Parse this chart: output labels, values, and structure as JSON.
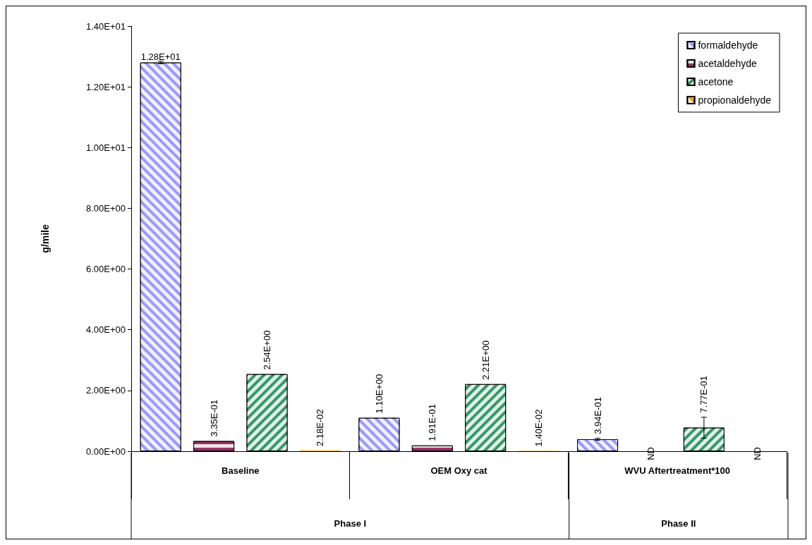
{
  "chart_data": {
    "type": "bar",
    "ylabel": "g/mile",
    "categories": [
      "Baseline",
      "OEM Oxy cat",
      "WVU Aftertreatment*100"
    ],
    "series": [
      {
        "name": "formaldehyde",
        "color": "#9999ff",
        "values": [
          12.8,
          1.1,
          0.394
        ],
        "errors": [
          0.04,
          null,
          0.03
        ],
        "value_labels": [
          "1.28E+01",
          "1.10E+00",
          "3.94E-01"
        ]
      },
      {
        "name": "acetaldehyde",
        "color": "#993366",
        "values": [
          0.335,
          0.191,
          null
        ],
        "value_labels": [
          "3.35E-01",
          "1.91E-01",
          "ND"
        ]
      },
      {
        "name": "acetone",
        "color": "#339966",
        "values": [
          2.54,
          2.21,
          0.777
        ],
        "errors": [
          null,
          null,
          [
            0.43,
            1.12
          ]
        ],
        "value_labels": [
          "2.54E+00",
          "2.21E+00",
          "7.77E-01"
        ]
      },
      {
        "name": "propionaldehyde",
        "color": "#ff9900",
        "values": [
          0.0218,
          0.014,
          null
        ],
        "value_labels": [
          "2.18E-02",
          "1.40E-02",
          "ND"
        ]
      }
    ],
    "ylim": [
      0,
      14
    ],
    "yticks": [
      {
        "value": 0,
        "label": "0.00E+00"
      },
      {
        "value": 2,
        "label": "2.00E+00"
      },
      {
        "value": 4,
        "label": "4.00E+00"
      },
      {
        "value": 6,
        "label": "6.00E+00"
      },
      {
        "value": 8,
        "label": "8.00E+00"
      },
      {
        "value": 10,
        "label": "1.00E+01"
      },
      {
        "value": 12,
        "label": "1.20E+01"
      },
      {
        "value": 14,
        "label": "1.40E+01"
      }
    ],
    "annotations": [
      "Phase I",
      "Phase II"
    ],
    "grid": false,
    "legend": "top right"
  }
}
